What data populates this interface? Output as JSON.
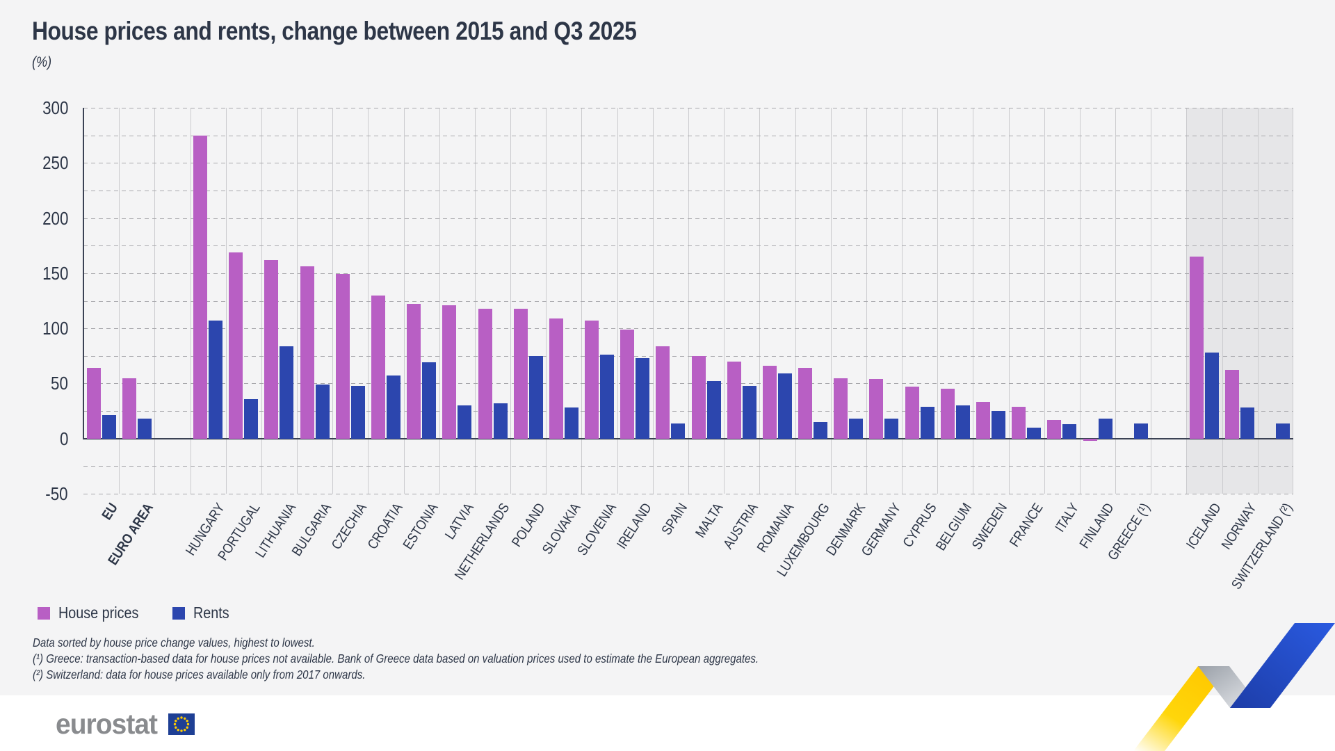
{
  "page": {
    "title": "House prices and rents, change between 2015 and Q3 2025",
    "subtitle": "(%)"
  },
  "legend": {
    "house_prices_label": "House prices",
    "rents_label": "Rents"
  },
  "footnotes": [
    "Data sorted by house price change values, highest to lowest.",
    "(¹) Greece: transaction-based data for house prices not available. Bank of Greece data based on valuation prices used to estimate the European aggregates.",
    "(²) Switzerland: data for house prices available only from 2017 onwards."
  ],
  "logo": {
    "text": "eurostat"
  },
  "colors": {
    "house_prices": "#b85fc4",
    "rents": "#2c46ae",
    "shaded_band": "#e6e6e8",
    "text": "#2d3647",
    "logo_grey": "#898b8e",
    "flag_blue": "#1e3f94",
    "flag_stars": "#ffcc00",
    "ribbon_yellow": "#ffd200",
    "ribbon_grey": "#9aa0a8",
    "ribbon_blue": "#2148c0"
  },
  "chart_data": {
    "type": "bar",
    "title": "House prices and rents, change between 2015 and Q3 2025",
    "ylabel": "(%)",
    "y_axis": {
      "min": -50,
      "max": 300,
      "tick_step": 50,
      "minor_grid_step": 25,
      "grid": true
    },
    "legend_position": "bottom-left",
    "series_names": [
      "House prices",
      "Rents"
    ],
    "groups": [
      {
        "id": "aggregates",
        "shaded": false,
        "items": [
          {
            "label": "EU",
            "bold": true,
            "house_prices": 64,
            "rents": 21
          },
          {
            "label": "EURO AREA",
            "bold": true,
            "house_prices": 55,
            "rents": 18
          }
        ]
      },
      {
        "id": "eu-countries",
        "shaded": false,
        "items": [
          {
            "label": "HUNGARY",
            "house_prices": 275,
            "rents": 107
          },
          {
            "label": "PORTUGAL",
            "house_prices": 169,
            "rents": 36
          },
          {
            "label": "LITHUANIA",
            "house_prices": 162,
            "rents": 84
          },
          {
            "label": "BULGARIA",
            "house_prices": 156,
            "rents": 49
          },
          {
            "label": "CZECHIA",
            "house_prices": 149,
            "rents": 48
          },
          {
            "label": "CROATIA",
            "house_prices": 130,
            "rents": 57
          },
          {
            "label": "ESTONIA",
            "house_prices": 122,
            "rents": 69
          },
          {
            "label": "LATVIA",
            "house_prices": 121,
            "rents": 30
          },
          {
            "label": "NETHERLANDS",
            "house_prices": 118,
            "rents": 32
          },
          {
            "label": "POLAND",
            "house_prices": 118,
            "rents": 75
          },
          {
            "label": "SLOVAKIA",
            "house_prices": 109,
            "rents": 28
          },
          {
            "label": "SLOVENIA",
            "house_prices": 107,
            "rents": 76
          },
          {
            "label": "IRELAND",
            "house_prices": 99,
            "rents": 73
          },
          {
            "label": "SPAIN",
            "house_prices": 84,
            "rents": 14
          },
          {
            "label": "MALTA",
            "house_prices": 75,
            "rents": 52
          },
          {
            "label": "AUSTRIA",
            "house_prices": 70,
            "rents": 48
          },
          {
            "label": "ROMANIA",
            "house_prices": 66,
            "rents": 59
          },
          {
            "label": "LUXEMBOURG",
            "house_prices": 64,
            "rents": 15
          },
          {
            "label": "DENMARK",
            "house_prices": 55,
            "rents": 18
          },
          {
            "label": "GERMANY",
            "house_prices": 54,
            "rents": 18
          },
          {
            "label": "CYPRUS",
            "house_prices": 47,
            "rents": 29
          },
          {
            "label": "BELGIUM",
            "house_prices": 45,
            "rents": 30
          },
          {
            "label": "SWEDEN",
            "house_prices": 33,
            "rents": 25
          },
          {
            "label": "FRANCE",
            "house_prices": 29,
            "rents": 10
          },
          {
            "label": "ITALY",
            "house_prices": 17,
            "rents": 13
          },
          {
            "label": "FINLAND",
            "house_prices": -2,
            "rents": 18
          },
          {
            "label": "GREECE (¹)",
            "house_prices": null,
            "rents": 14
          }
        ]
      },
      {
        "id": "non-eu",
        "shaded": true,
        "items": [
          {
            "label": "ICELAND",
            "house_prices": 165,
            "rents": 78
          },
          {
            "label": "NORWAY",
            "house_prices": 62,
            "rents": 28
          },
          {
            "label": "SWITZERLAND (²)",
            "house_prices": null,
            "rents": 14
          }
        ]
      }
    ]
  }
}
